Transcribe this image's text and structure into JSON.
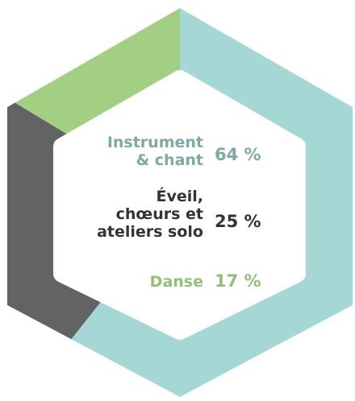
{
  "chart_data": {
    "type": "pie",
    "shape": "hexagonal donut",
    "title": "",
    "categories": [
      "Instrument & chant",
      "Éveil, chœurs et ateliers solo",
      "Danse"
    ],
    "values": [
      64,
      25,
      17
    ],
    "unit": "%",
    "colors": [
      "#a5d8d4",
      "#636363",
      "#a3cf82"
    ],
    "label_colors": [
      "#7eaaa6",
      "#333333",
      "#8fc272"
    ],
    "labels": [
      {
        "lines": [
          "Instrument",
          "& chant"
        ],
        "value_text": "64 %"
      },
      {
        "lines": [
          "Éveil,",
          "chœurs et",
          "ateliers solo"
        ],
        "value_text": "25 %"
      },
      {
        "lines": [
          "Danse"
        ],
        "value_text": "17 %"
      }
    ]
  }
}
